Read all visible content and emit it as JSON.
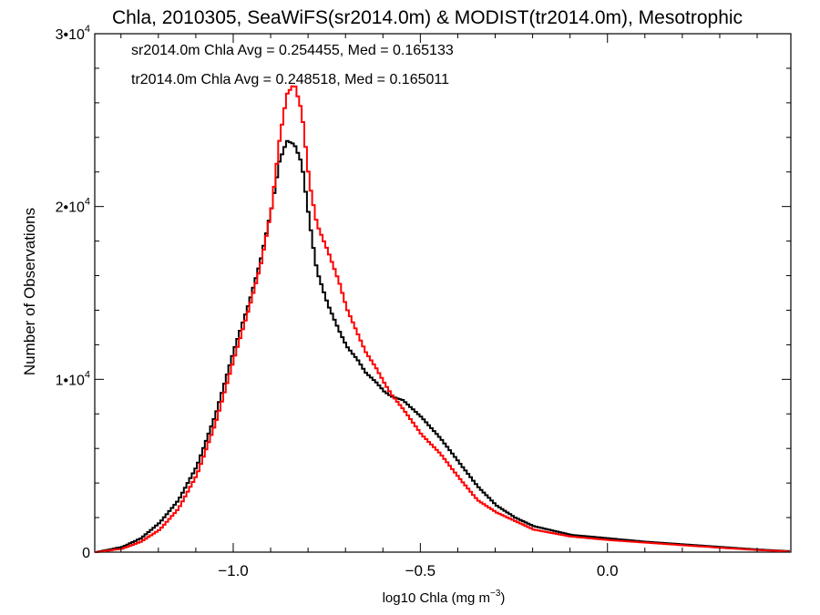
{
  "chart_data": {
    "type": "line",
    "title": "Chla, 2010305, SeaWiFS(sr2014.0m) & MODIST(tr2014.0m), Mesotrophic",
    "xlabel_main": "log10 Chla (mg m",
    "xlabel_exp": "−3",
    "xlabel_close": ")",
    "ylabel": "Number of Observations",
    "xlim": [
      -1.37,
      0.49
    ],
    "ylim": [
      0,
      30000
    ],
    "x_ticks": [
      {
        "value": -1.0,
        "label": "−1.0"
      },
      {
        "value": -0.5,
        "label": "−0.5"
      },
      {
        "value": 0.0,
        "label": "0.0"
      }
    ],
    "y_ticks": [
      {
        "value": 0,
        "base": "0",
        "exp": ""
      },
      {
        "value": 10000,
        "base": "1•10",
        "exp": "4"
      },
      {
        "value": 20000,
        "base": "2•10",
        "exp": "4"
      },
      {
        "value": 30000,
        "base": "3•10",
        "exp": "4"
      }
    ],
    "annotations": [
      {
        "text": "sr2014.0m Chla Avg = 0.254455, Med = 0.165133",
        "color": "#000000"
      },
      {
        "text": "tr2014.0m Chla Avg = 0.248518, Med = 0.165011",
        "color": "#ff0000"
      }
    ],
    "grid": false,
    "series": [
      {
        "name": "sr2014.0m",
        "color": "#000000",
        "x": [
          -1.37,
          -1.3,
          -1.25,
          -1.2,
          -1.15,
          -1.1,
          -1.05,
          -1.0,
          -0.96,
          -0.93,
          -0.9,
          -0.88,
          -0.86,
          -0.84,
          -0.82,
          -0.8,
          -0.78,
          -0.75,
          -0.72,
          -0.7,
          -0.67,
          -0.65,
          -0.62,
          -0.6,
          -0.58,
          -0.55,
          -0.5,
          -0.45,
          -0.4,
          -0.35,
          -0.3,
          -0.25,
          -0.2,
          -0.1,
          0.0,
          0.1,
          0.2,
          0.3,
          0.4,
          0.49
        ],
        "y": [
          0,
          300,
          800,
          1700,
          3000,
          5000,
          8000,
          11800,
          14500,
          16900,
          20000,
          22600,
          23800,
          23600,
          22500,
          19200,
          16300,
          14300,
          12800,
          11900,
          11100,
          10400,
          9800,
          9300,
          9000,
          8800,
          7800,
          6600,
          5200,
          3800,
          2700,
          2000,
          1500,
          1000,
          800,
          600,
          450,
          300,
          150,
          50
        ]
      },
      {
        "name": "tr2014.0m",
        "color": "#ff0000",
        "x": [
          -1.37,
          -1.3,
          -1.25,
          -1.2,
          -1.15,
          -1.1,
          -1.05,
          -1.0,
          -0.96,
          -0.93,
          -0.9,
          -0.88,
          -0.86,
          -0.84,
          -0.82,
          -0.8,
          -0.78,
          -0.75,
          -0.72,
          -0.7,
          -0.67,
          -0.65,
          -0.62,
          -0.6,
          -0.58,
          -0.55,
          -0.5,
          -0.45,
          -0.4,
          -0.35,
          -0.3,
          -0.25,
          -0.2,
          -0.1,
          0.0,
          0.1,
          0.2,
          0.3,
          0.4,
          0.49
        ],
        "y": [
          0,
          200,
          600,
          1300,
          2500,
          4500,
          7500,
          11300,
          14200,
          16600,
          20000,
          23800,
          26500,
          27100,
          25500,
          21400,
          19000,
          17400,
          15600,
          14100,
          12600,
          11600,
          10600,
          9800,
          9100,
          8300,
          6800,
          5700,
          4300,
          3000,
          2300,
          1800,
          1300,
          900,
          700,
          550,
          400,
          250,
          120,
          30
        ]
      }
    ]
  }
}
